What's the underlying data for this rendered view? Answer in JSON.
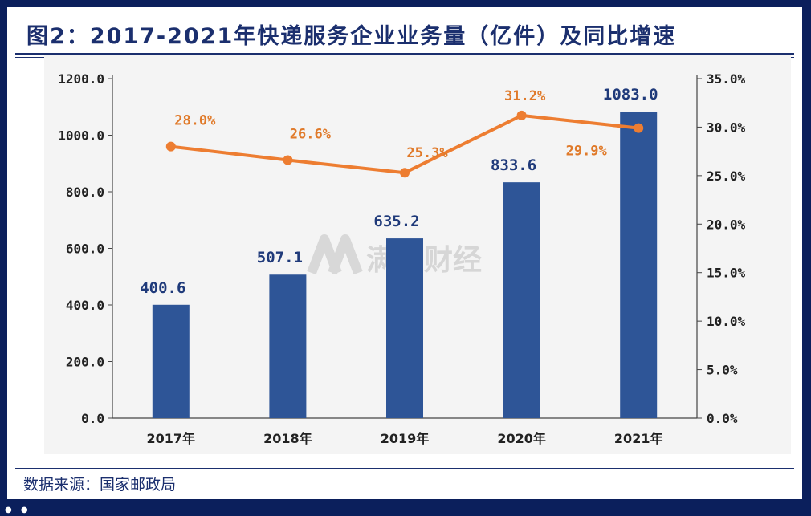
{
  "title": "图2：2017-2021年快递服务企业业务量（亿件）及同比增速",
  "source": "数据来源：国家邮政局",
  "watermark": "满投财经",
  "colors": {
    "bar": "#2e5597",
    "line": "#ed7d31",
    "bar_label": "#1f3a7a",
    "line_label": "#e07a2a",
    "frame": "#0b1f5c",
    "title": "#1b2f6e"
  },
  "chart_data": {
    "type": "bar",
    "categories": [
      "2017年",
      "2018年",
      "2019年",
      "2020年",
      "2021年"
    ],
    "series": [
      {
        "values": [
          400.6,
          507.1,
          635.2,
          833.6,
          1083.0
        ],
        "labels": [
          "400.6",
          "507.1",
          "635.2",
          "833.6",
          "1083.0"
        ],
        "axis": "left",
        "kind": "bar"
      },
      {
        "values": [
          28.0,
          26.6,
          25.3,
          31.2,
          29.9
        ],
        "labels": [
          "28.0%",
          "26.6%",
          "25.3%",
          "31.2%",
          "29.9%"
        ],
        "axis": "right",
        "kind": "line"
      }
    ],
    "ylim": [
      0,
      1200
    ],
    "y2lim": [
      0,
      35
    ],
    "yticks": [
      "0.0",
      "200.0",
      "400.0",
      "600.0",
      "800.0",
      "1000.0",
      "1200.0"
    ],
    "y2ticks": [
      "0.0%",
      "5.0%",
      "10.0%",
      "15.0%",
      "20.0%",
      "25.0%",
      "30.0%",
      "35.0%"
    ],
    "grid": false
  }
}
